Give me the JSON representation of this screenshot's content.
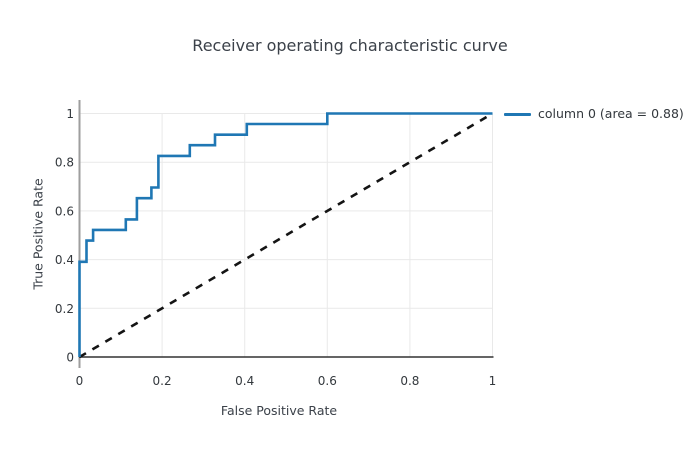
{
  "title": "Receiver operating characteristic curve",
  "colors": {
    "curve": "#1f77b4",
    "diagonal": "#141414",
    "grid": "#e9e9e9",
    "axis_y_line": "#9e9e9e",
    "axis_x_line": "#323232",
    "text": "#3b4149"
  },
  "legend": {
    "position": "top-right",
    "entries": [
      {
        "label": "column 0 (area = 0.88)",
        "color": "#1f77b4"
      }
    ]
  },
  "chart_data": {
    "type": "line",
    "subtype": "roc-step-curve",
    "title": "Receiver operating characteristic curve",
    "xlabel": "False Positive Rate",
    "ylabel": "True Positive Rate",
    "xlim": [
      0,
      1
    ],
    "ylim": [
      0,
      1
    ],
    "grid": true,
    "x_ticks": {
      "values": [
        0,
        0.2,
        0.4,
        0.6,
        0.8,
        1
      ],
      "labels": [
        "0",
        "0.2",
        "0.4",
        "0.6",
        "0.8",
        "1"
      ]
    },
    "y_ticks": {
      "values": [
        0,
        0.2,
        0.4,
        0.6,
        0.8,
        1
      ],
      "labels": [
        "0",
        "0.2",
        "0.4",
        "0.6",
        "0.8",
        "1"
      ]
    },
    "series": [
      {
        "name": "chance-diagonal",
        "role": "chance",
        "style": "dashed",
        "color": "#141414",
        "points": [
          [
            0,
            0
          ],
          [
            1,
            1
          ]
        ]
      },
      {
        "name": "column 0 (area = 0.88)",
        "role": "roc",
        "style": "solid",
        "color": "#1f77b4",
        "area": 0.88,
        "points": [
          [
            0,
            0
          ],
          [
            0,
            0.391
          ],
          [
            0.017,
            0.391
          ],
          [
            0.017,
            0.478
          ],
          [
            0.033,
            0.478
          ],
          [
            0.033,
            0.522
          ],
          [
            0.112,
            0.522
          ],
          [
            0.112,
            0.565
          ],
          [
            0.139,
            0.565
          ],
          [
            0.139,
            0.652
          ],
          [
            0.174,
            0.652
          ],
          [
            0.174,
            0.696
          ],
          [
            0.191,
            0.696
          ],
          [
            0.191,
            0.826
          ],
          [
            0.267,
            0.826
          ],
          [
            0.267,
            0.87
          ],
          [
            0.328,
            0.87
          ],
          [
            0.328,
            0.913
          ],
          [
            0.405,
            0.913
          ],
          [
            0.405,
            0.957
          ],
          [
            0.6,
            0.957
          ],
          [
            0.6,
            1
          ],
          [
            1,
            1
          ]
        ]
      }
    ]
  }
}
